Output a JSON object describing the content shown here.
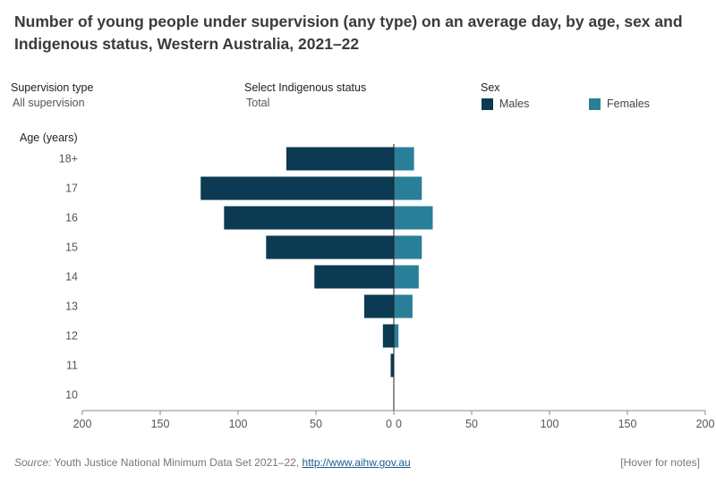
{
  "title": "Number of young people under supervision (any type) on an average day, by age, sex and Indigenous status, Western Australia, 2021–22",
  "controls": {
    "supervision_type_label": "Supervision type",
    "supervision_type_value": "All supervision",
    "indigenous_label": "Select Indigenous status",
    "indigenous_value": "Total"
  },
  "legend": {
    "title": "Sex",
    "items": [
      {
        "label": "Males",
        "color": "#0b3a52"
      },
      {
        "label": "Females",
        "color": "#2a7f98"
      }
    ]
  },
  "chart_data": {
    "type": "bar",
    "orientation": "horizontal-butterfly",
    "categories": [
      "18+",
      "17",
      "16",
      "15",
      "14",
      "13",
      "12",
      "11",
      "10"
    ],
    "ylabel": "Age (years)",
    "series": [
      {
        "name": "Males",
        "color": "#0b3a52",
        "values": [
          69,
          124,
          109,
          82,
          51,
          19,
          7,
          2,
          0
        ]
      },
      {
        "name": "Females",
        "color": "#2a7f98",
        "values": [
          13,
          18,
          25,
          18,
          16,
          12,
          3,
          0,
          0
        ]
      }
    ],
    "xlim": [
      0,
      200
    ],
    "x_ticks_left": [
      "200",
      "150",
      "100",
      "50",
      "0"
    ],
    "x_ticks_right": [
      "0",
      "50",
      "100",
      "150",
      "200"
    ]
  },
  "footer": {
    "source_label": "Source:",
    "source_text": " Youth Justice National Minimum Data Set 2021–22, ",
    "link": "http://www.aihw.gov.au",
    "notes": "[Hover for notes]"
  }
}
